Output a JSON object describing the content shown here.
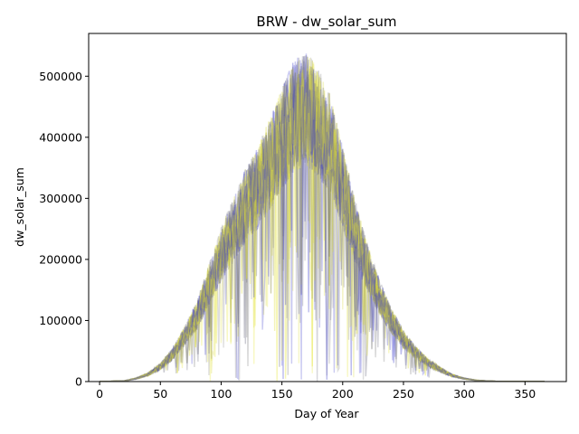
{
  "chart_data": {
    "type": "line",
    "title": "BRW - dw_solar_sum",
    "xlabel": "Day of Year",
    "ylabel": "dw_solar_sum",
    "xlim": [
      -9,
      384
    ],
    "ylim": [
      0,
      570000
    ],
    "xticks": [
      0,
      50,
      100,
      150,
      200,
      250,
      300,
      350
    ],
    "yticks": [
      0,
      100000,
      200000,
      300000,
      400000,
      500000
    ],
    "grid": false,
    "legend": "none",
    "colors": [
      "#3f3fcc",
      "#8a8a8a",
      "#e6e62e",
      "#6b6b7f",
      "#dcdc3c"
    ],
    "envelope": {
      "x": [
        0,
        20,
        30,
        40,
        50,
        60,
        70,
        80,
        90,
        100,
        110,
        120,
        130,
        140,
        150,
        160,
        170,
        180,
        190,
        200,
        210,
        220,
        230,
        240,
        250,
        260,
        270,
        280,
        290,
        300,
        310,
        320,
        330,
        340,
        350,
        366
      ],
      "y": [
        0,
        1000,
        5000,
        12000,
        25000,
        45000,
        75000,
        110000,
        160000,
        210000,
        250000,
        290000,
        320000,
        360000,
        400000,
        440000,
        450000,
        430000,
        390000,
        320000,
        250000,
        190000,
        140000,
        100000,
        70000,
        48000,
        32000,
        20000,
        10000,
        5000,
        2000,
        800,
        200,
        0,
        0,
        0
      ]
    }
  }
}
